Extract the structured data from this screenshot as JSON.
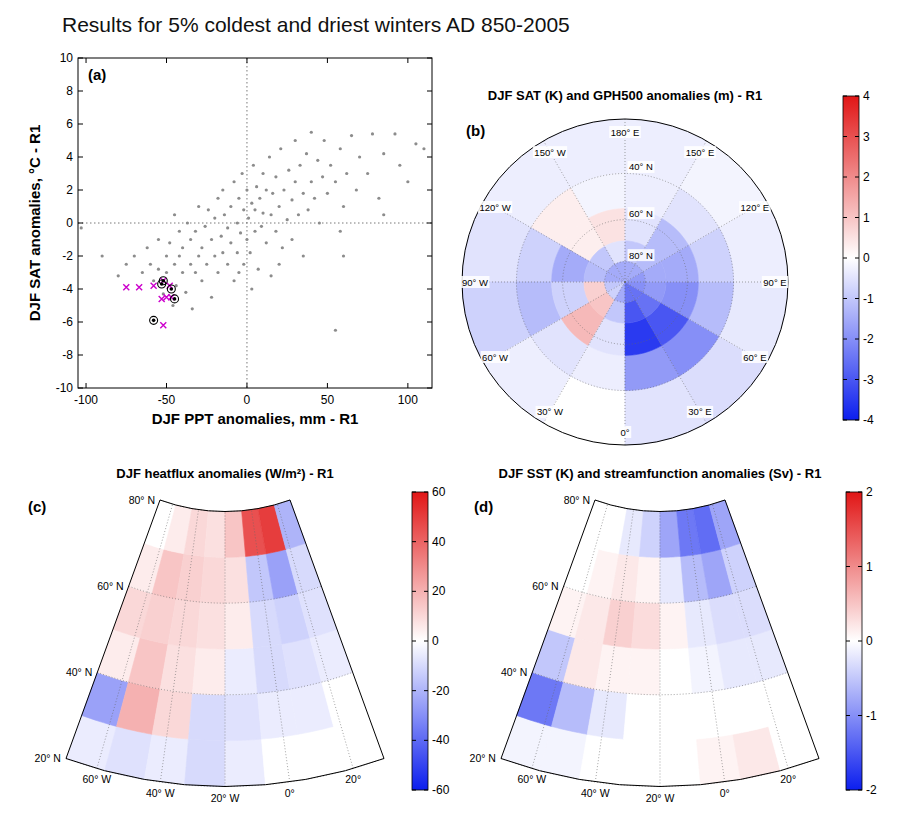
{
  "title": "Results for 5% coldest and driest winters AD 850-2005",
  "chart_data": [
    {
      "type": "scatter",
      "panel_label": "(a)",
      "x_label": "DJF PPT anomalies, mm - R1",
      "y_label": "DJF SAT anomalies, °C - R1",
      "xlim": [
        -105,
        115
      ],
      "ylim": [
        -10,
        10
      ],
      "xticks": [
        -100,
        -50,
        0,
        50,
        100
      ],
      "yticks": [
        -10,
        -8,
        -6,
        -4,
        -2,
        0,
        2,
        4,
        6,
        8,
        10
      ],
      "reference_lines": {
        "x": [
          0
        ],
        "y": [
          0
        ]
      },
      "series": [
        {
          "color": "#8c8c8c",
          "marker": "dot",
          "x": [
            -90,
            -80,
            -75,
            -70,
            -65,
            -62,
            -60,
            -58,
            -55,
            -55,
            -52,
            -50,
            -50,
            -48,
            -46,
            -45,
            -44,
            -42,
            -42,
            -40,
            -40,
            -38,
            -37,
            -35,
            -35,
            -34,
            -32,
            -32,
            -30,
            -30,
            -28,
            -28,
            -26,
            -25,
            -24,
            -22,
            -22,
            -20,
            -20,
            -18,
            -18,
            -16,
            -15,
            -15,
            -14,
            -12,
            -12,
            -10,
            -10,
            -8,
            -8,
            -6,
            -6,
            -5,
            -4,
            -3,
            -2,
            -2,
            0,
            0,
            1,
            2,
            3,
            4,
            5,
            5,
            6,
            7,
            8,
            9,
            10,
            10,
            12,
            12,
            14,
            15,
            15,
            16,
            18,
            18,
            20,
            21,
            22,
            23,
            25,
            26,
            28,
            28,
            30,
            30,
            32,
            33,
            35,
            35,
            37,
            38,
            40,
            40,
            42,
            44,
            45,
            47,
            48,
            50,
            52,
            55,
            55,
            58,
            60,
            62,
            65,
            68,
            70,
            75,
            78,
            82,
            85,
            92,
            95,
            100,
            105,
            110,
            -103,
            58,
            -5,
            3,
            20,
            -45,
            60,
            85
          ],
          "values": [
            -2,
            -3.2,
            -2.5,
            -2,
            -3,
            -1.5,
            -2.5,
            -3.5,
            -1,
            -2.8,
            -4.3,
            -2,
            -3,
            -1.2,
            -5,
            -2.5,
            -3.8,
            -0.5,
            -2,
            -3,
            -1.5,
            -4.2,
            0,
            -2.5,
            -1,
            -5.2,
            -3,
            -0.5,
            -2,
            1,
            -1.5,
            -3.5,
            -0.2,
            -2.5,
            0.8,
            -1,
            -4.5,
            -2,
            0.3,
            1.5,
            -3,
            -0.8,
            -1.8,
            2,
            0.5,
            -2.5,
            -0.3,
            1,
            -1.2,
            2.5,
            -3.5,
            0,
            -1.8,
            1.5,
            -0.6,
            3,
            -2.5,
            0.8,
            -1,
            2,
            0.3,
            -1.8,
            1.2,
            3.5,
            -0.5,
            0.8,
            2.2,
            -2.8,
            1.5,
            -0.2,
            0.6,
            3,
            -1.2,
            2,
            4,
            0.5,
            -3.2,
            1.8,
            -0.5,
            2.8,
            1,
            4.5,
            -1.5,
            2,
            0.2,
            3.2,
            1.4,
            -1,
            2.5,
            5,
            0.5,
            3.5,
            1.8,
            -2,
            4.2,
            0.8,
            2.5,
            5.5,
            1.5,
            3.8,
            0,
            2.8,
            5,
            1.8,
            3.5,
            2.5,
            -6.5,
            4.5,
            1,
            3,
            5.3,
            2,
            4,
            3,
            5.4,
            1.5,
            4.2,
            5.4,
            3.5,
            2.5,
            4.8,
            4.5,
            -0.3,
            -0.5,
            -3,
            -4,
            -2.5,
            0.5,
            -2,
            0.5
          ]
        },
        {
          "color": "#cc00cc",
          "marker": "x",
          "x": [
            -75,
            -67,
            -58,
            -52,
            -48,
            -50,
            -53,
            -47,
            -52
          ],
          "values": [
            -3.9,
            -3.9,
            -3.8,
            -3.5,
            -3.8,
            -4.5,
            -4.6,
            -4.5,
            -6.2
          ]
        },
        {
          "color": "#000000",
          "marker": "circled-dot",
          "x": [
            -52,
            -53,
            -47,
            -45,
            -58
          ],
          "values": [
            -3.5,
            -3.7,
            -4,
            -4.6,
            -5.9
          ]
        }
      ]
    },
    {
      "type": "polar_map",
      "title": "DJF SAT (K) and GPH500 anomalies (m) - R1",
      "panel_label": "(b)",
      "lat_edges": [
        20,
        40,
        55,
        70,
        80,
        90
      ],
      "lon_edges": [
        -180,
        -150,
        -120,
        -90,
        -60,
        -30,
        0,
        30,
        60,
        90,
        120,
        150,
        180
      ],
      "values": [
        [
          -0.3,
          -0.3,
          -0.5,
          -0.8,
          -0.3,
          0,
          -0.5,
          -0.6,
          -0.4,
          -0.3,
          -0.2,
          -0.3
        ],
        [
          -0.2,
          0.3,
          -0.8,
          -1.2,
          -0.5,
          -0.3,
          -1.8,
          -2.0,
          -1.2,
          -0.8,
          -0.5,
          -0.3
        ],
        [
          0.5,
          0.3,
          -1.5,
          -0.8,
          1.2,
          -0.5,
          -3.5,
          -3.0,
          -2.0,
          -1.5,
          -1.2,
          -0.5
        ],
        [
          -0.5,
          -1.0,
          -1.2,
          0.8,
          1.0,
          -1.0,
          -3.0,
          -2.5,
          -1.8,
          -1.5,
          -1.2,
          -1.0
        ],
        [
          -1.5,
          -1.5,
          -1.5,
          -1.0,
          -0.8,
          -1.5,
          -2.5,
          -2.5,
          -2.0,
          -1.8,
          -1.5,
          -1.5
        ]
      ],
      "clim": [
        -4,
        4
      ],
      "cticks": [
        -4,
        -3,
        -2,
        -1,
        0,
        1,
        2,
        3,
        4
      ],
      "lat_labels": [
        {
          "value": 40,
          "label": "40° N"
        },
        {
          "value": 60,
          "label": "60° N"
        },
        {
          "value": 80,
          "label": "80° N"
        }
      ],
      "lon_labels": [
        {
          "value": 180,
          "label": "180° E"
        },
        {
          "value": 150,
          "label": "150° E"
        },
        {
          "value": 120,
          "label": "120° E"
        },
        {
          "value": 90,
          "label": "90° E"
        },
        {
          "value": 60,
          "label": "60° E"
        },
        {
          "value": 30,
          "label": "30° E"
        },
        {
          "value": 0,
          "label": "0°"
        },
        {
          "value": -30,
          "label": "30° W"
        },
        {
          "value": -60,
          "label": "60° W"
        },
        {
          "value": -90,
          "label": "90° W"
        },
        {
          "value": -120,
          "label": "120° W"
        },
        {
          "value": -150,
          "label": "150° W"
        }
      ]
    },
    {
      "type": "conic_map",
      "title": "DJF heatflux anomalies (W/m²) - R1",
      "panel_label": "(c)",
      "lat_edges": [
        20,
        30,
        40,
        50,
        60,
        70,
        80
      ],
      "lon_edges": [
        -70,
        -57.5,
        -45,
        -32.5,
        -20,
        -7.5,
        5,
        17.5,
        30
      ],
      "values": [
        [
          -5,
          -8,
          -5,
          -10,
          -5,
          0,
          0,
          0
        ],
        [
          -25,
          20,
          10,
          -10,
          -8,
          -5,
          -5,
          0
        ],
        [
          5,
          15,
          8,
          5,
          -5,
          -10,
          -8,
          -5
        ],
        [
          10,
          12,
          10,
          8,
          5,
          -10,
          -12,
          -8
        ],
        [
          5,
          15,
          12,
          10,
          8,
          -15,
          -25,
          -10
        ],
        [
          0,
          5,
          10,
          8,
          15,
          45,
          50,
          -20
        ]
      ],
      "clim": [
        -60,
        60
      ],
      "cticks": [
        -60,
        -40,
        -20,
        0,
        20,
        40,
        60
      ],
      "lat_labels": [
        {
          "value": 20,
          "label": "20° N"
        },
        {
          "value": 40,
          "label": "40° N"
        },
        {
          "value": 60,
          "label": "60° N"
        },
        {
          "value": 80,
          "label": "80° N"
        }
      ],
      "lon_labels": [
        {
          "value": -60,
          "label": "60° W"
        },
        {
          "value": -40,
          "label": "40° W"
        },
        {
          "value": -20,
          "label": "20° W"
        },
        {
          "value": 0,
          "label": "0°"
        },
        {
          "value": 20,
          "label": "20°"
        }
      ]
    },
    {
      "type": "conic_map",
      "title": "DJF SST (K) and streamfunction anomalies (Sv) - R1",
      "panel_label": "(d)",
      "lat_edges": [
        20,
        30,
        40,
        50,
        60,
        70,
        80
      ],
      "lon_edges": [
        -70,
        -57.5,
        -45,
        -32.5,
        -20,
        -7.5,
        5,
        17.5,
        30
      ],
      "values": [
        [
          -0.1,
          -0.1,
          0,
          0,
          0,
          0.1,
          0.2,
          0
        ],
        [
          -1.2,
          -0.6,
          -0.2,
          0,
          0,
          0,
          0,
          0
        ],
        [
          -0.5,
          0.2,
          0.1,
          0.1,
          0,
          -0.1,
          -0.2,
          -0.2
        ],
        [
          0.1,
          0.2,
          0.4,
          0.3,
          0.1,
          -0.2,
          -0.3,
          -0.3
        ],
        [
          0,
          0.1,
          0.2,
          0.1,
          -0.2,
          -0.6,
          -0.8,
          -0.4
        ],
        [
          0,
          0,
          -0.2,
          -0.4,
          -0.8,
          -1.2,
          -1.3,
          -0.8
        ]
      ],
      "clim": [
        -2,
        2
      ],
      "cticks": [
        -2,
        -1,
        0,
        1,
        2
      ],
      "lat_labels": [
        {
          "value": 20,
          "label": "20° N"
        },
        {
          "value": 40,
          "label": "40° N"
        },
        {
          "value": 60,
          "label": "60° N"
        },
        {
          "value": 80,
          "label": "80° N"
        }
      ],
      "lon_labels": [
        {
          "value": -60,
          "label": "60° W"
        },
        {
          "value": -40,
          "label": "40° W"
        },
        {
          "value": -20,
          "label": "20° W"
        },
        {
          "value": 0,
          "label": "0°"
        },
        {
          "value": 20,
          "label": "20°"
        }
      ]
    }
  ]
}
